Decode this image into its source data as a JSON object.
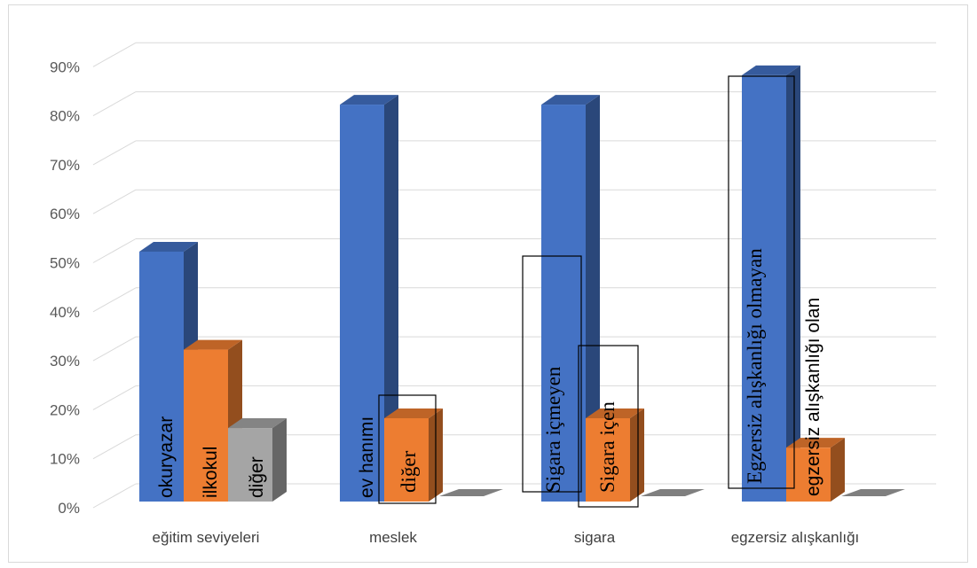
{
  "chart_data": {
    "type": "bar",
    "style": "3d-clustered-column",
    "categories": [
      "eğitim seviyeleri",
      "meslek",
      "sigara",
      "egzersiz alışkanlığı"
    ],
    "ylim": [
      0,
      90
    ],
    "yticks": [
      0,
      10,
      20,
      30,
      40,
      50,
      60,
      70,
      80,
      90
    ],
    "ytick_labels": [
      "0%",
      "10%",
      "20%",
      "30%",
      "40%",
      "50%",
      "60%",
      "70%",
      "80%",
      "90%"
    ],
    "grid": true,
    "legend": "none",
    "series": [
      {
        "color": "#4472C4",
        "values": [
          51,
          81,
          81,
          87
        ]
      },
      {
        "color": "#ED7D31",
        "values": [
          31,
          17,
          17,
          11
        ]
      },
      {
        "color": "#A5A5A5",
        "values": [
          15,
          0,
          0,
          0
        ]
      }
    ],
    "bar_labels": [
      {
        "text": "okuryazar",
        "category": 0,
        "series": 0,
        "font": "sans",
        "boxed": false
      },
      {
        "text": "ilkokul",
        "category": 0,
        "series": 1,
        "font": "sans",
        "boxed": false
      },
      {
        "text": "diğer",
        "category": 0,
        "series": 2,
        "font": "sans",
        "boxed": false
      },
      {
        "text": "ev hanımı",
        "category": 1,
        "series": 0,
        "font": "sans",
        "boxed": false
      },
      {
        "text": "diğer",
        "category": 1,
        "series": 1,
        "font": "serif",
        "boxed": true
      },
      {
        "text": "Sigara içmeyen",
        "category": 2,
        "series": 0,
        "font": "serif",
        "boxed": true
      },
      {
        "text": "Sigara içen",
        "category": 2,
        "series": 1,
        "font": "serif",
        "boxed": true
      },
      {
        "text": "Egzersiz alışkanlığı olmayan",
        "category": 3,
        "series": 0,
        "font": "serif",
        "boxed": true
      },
      {
        "text": "egzersiz alışkanlığı olan",
        "category": 3,
        "series": 1,
        "font": "sans",
        "boxed": false
      }
    ]
  }
}
